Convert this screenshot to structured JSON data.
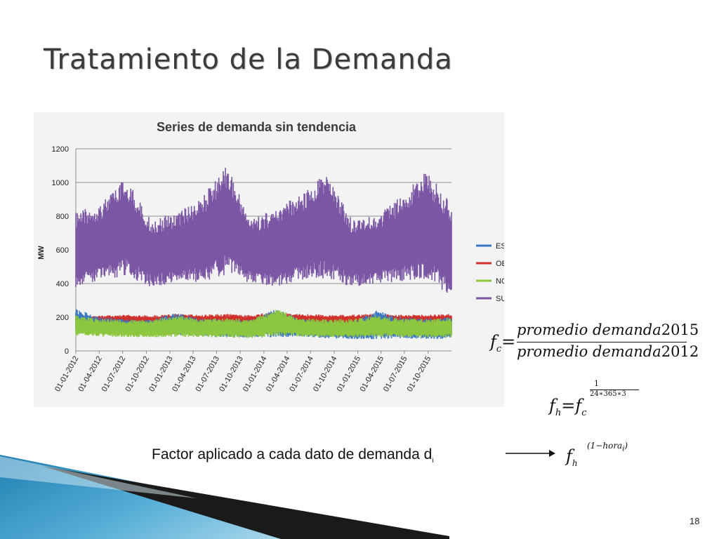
{
  "slide": {
    "title": "Tratamiento de la Demanda",
    "caption": "Factor aplicado a cada dato de demanda d",
    "caption_sub": "i",
    "page_number": "18",
    "colors": {
      "accent": "#2e8fbe",
      "title": "#3b3b3b"
    }
  },
  "formulas": {
    "fc": {
      "lhs": "f",
      "lhs_sub": "c",
      "equals": "=",
      "numerator": "promedio demanda",
      "numerator_year": "2015",
      "denominator": "promedio demanda",
      "denominator_year": "2012"
    },
    "fh": {
      "lhs": "f",
      "lhs_sub": "h",
      "equals": "=",
      "base": "f",
      "base_sub": "c",
      "exponent_numerator": "1",
      "exponent_denominator": "24∗365∗3"
    },
    "factor": {
      "base": "f",
      "base_sub": "h",
      "exponent": "(1−hora",
      "exponent_sub": "i",
      "exponent_close": ")"
    }
  },
  "chart_data": {
    "type": "area",
    "title": "Series de demanda sin tendencia",
    "xlabel": "",
    "ylabel": "MW",
    "ylim": [
      0,
      1200
    ],
    "yticks": [
      0,
      200,
      400,
      600,
      800,
      1000,
      1200
    ],
    "grid": true,
    "legend_position": "right",
    "x_tick_labels": [
      "01-01-2012",
      "01-04-2012",
      "01-07-2012",
      "01-10-2012",
      "01-01-2013",
      "01-04-2013",
      "01-07-2013",
      "01-10-2013",
      "01-01-2014",
      "01-04-2014",
      "01-07-2014",
      "01-10-2014",
      "01-01-2015",
      "01-04-2015",
      "01-07-2015",
      "01-10-2015"
    ],
    "x_start": "2012-01-01",
    "x_end": "2015-12-31",
    "series": [
      {
        "name": "ESTE",
        "color": "#3a78c2",
        "min": [
          110,
          100,
          95,
          90,
          95,
          85,
          80,
          80,
          80,
          85,
          75,
          70,
          70,
          75,
          70,
          70
        ],
        "max": [
          250,
          200,
          190,
          185,
          230,
          190,
          190,
          185,
          250,
          190,
          180,
          175,
          240,
          200,
          195,
          200
        ]
      },
      {
        "name": "OESTE",
        "color": "#d0312d",
        "min": [
          140,
          150,
          145,
          140,
          145,
          150,
          145,
          140,
          150,
          150,
          145,
          145,
          150,
          150,
          150,
          150
        ],
        "max": [
          215,
          210,
          215,
          210,
          220,
          215,
          220,
          215,
          230,
          220,
          215,
          215,
          220,
          215,
          215,
          220
        ]
      },
      {
        "name": "NORTE",
        "color": "#8dc63f",
        "min": [
          90,
          85,
          80,
          80,
          85,
          80,
          80,
          75,
          90,
          85,
          80,
          80,
          85,
          80,
          80,
          80
        ],
        "max": [
          210,
          190,
          185,
          185,
          210,
          190,
          195,
          190,
          250,
          195,
          190,
          190,
          210,
          195,
          190,
          200
        ]
      },
      {
        "name": "SUR",
        "color": "#7b56a4",
        "min": [
          380,
          420,
          440,
          380,
          400,
          410,
          450,
          400,
          380,
          420,
          430,
          380,
          400,
          410,
          430,
          320
        ],
        "max": [
          820,
          880,
          1030,
          780,
          820,
          900,
          1110,
          780,
          850,
          930,
          1060,
          790,
          800,
          920,
          1070,
          880
        ]
      }
    ]
  }
}
